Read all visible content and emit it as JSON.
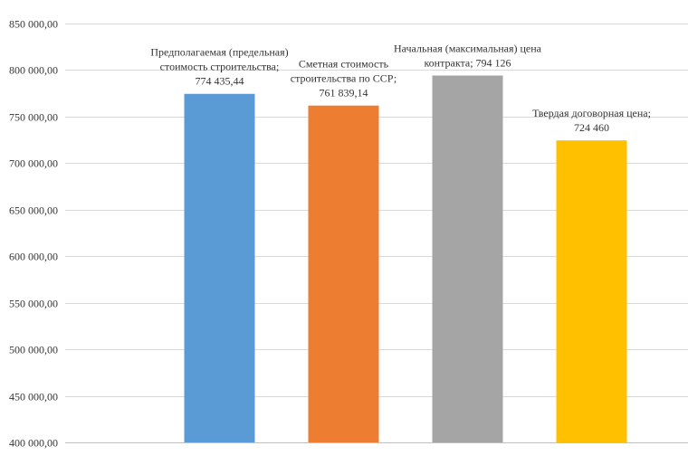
{
  "chart_data": {
    "type": "bar",
    "title": "",
    "xlabel": "",
    "ylabel": "",
    "ylim": [
      400000,
      850000
    ],
    "ytick_step": 50000,
    "y_tick_labels": [
      "400 000,00",
      "450 000,00",
      "500 000,00",
      "550 000,00",
      "600 000,00",
      "650 000,00",
      "700 000,00",
      "750 000,00",
      "800 000,00",
      "850 000,00"
    ],
    "grid": true,
    "legend": "none",
    "categories": [
      "Предполагаемая (предельная) стоимость строительства",
      "Сметная стоимость строительства по ССР",
      "Начальная (максимальная) цена контракта",
      "Твердая договорная цена"
    ],
    "values": [
      774435.44,
      761839.14,
      794126,
      724460
    ],
    "colors": [
      "#5b9bd5",
      "#ed7d31",
      "#a5a5a5",
      "#ffc000"
    ],
    "data_labels": [
      [
        "Предполагаемая (предельная)",
        "стоимость строительства;",
        "774 435,44"
      ],
      [
        "Сметная стоимость",
        "строительства по ССР;",
        "761 839,14"
      ],
      [
        "Начальная (максимальная) цена",
        "контракта; 794 126"
      ],
      [
        "Твердая договорная цена;",
        "724 460"
      ]
    ]
  }
}
